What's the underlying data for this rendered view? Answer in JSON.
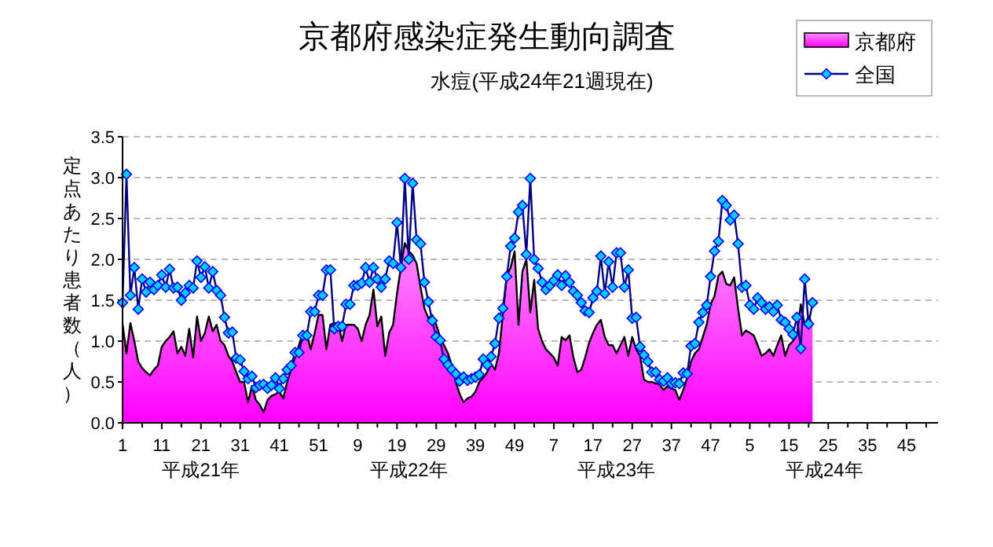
{
  "chart_data": {
    "type": "line",
    "title": "京都府感染症発生動向調査",
    "subtitle": "水痘(平成24年21週現在)",
    "ylabel": "定点あたり患者数（人）",
    "annotations": [
      "平成21年",
      "平成22年",
      "平成23年",
      "平成24年"
    ],
    "categories": [
      "1",
      null,
      null,
      null,
      null,
      null,
      null,
      null,
      null,
      null,
      "11",
      null,
      null,
      null,
      null,
      null,
      null,
      null,
      null,
      null,
      "21",
      null,
      null,
      null,
      null,
      null,
      null,
      null,
      null,
      null,
      "31",
      null,
      null,
      null,
      null,
      null,
      null,
      null,
      null,
      null,
      "41",
      null,
      null,
      null,
      null,
      null,
      null,
      null,
      null,
      null,
      "51",
      null,
      null,
      null,
      null,
      null,
      null,
      null,
      null,
      null,
      "9",
      null,
      null,
      null,
      null,
      null,
      null,
      null,
      null,
      null,
      "19",
      null,
      null,
      null,
      null,
      null,
      null,
      null,
      null,
      null,
      "29",
      null,
      null,
      null,
      null,
      null,
      null,
      null,
      null,
      null,
      "39",
      null,
      null,
      null,
      null,
      null,
      null,
      null,
      null,
      null,
      "49",
      null,
      null,
      null,
      null,
      null,
      null,
      null,
      null,
      null,
      "7",
      null,
      null,
      null,
      null,
      null,
      null,
      null,
      null,
      null,
      "17",
      null,
      null,
      null,
      null,
      null,
      null,
      null,
      null,
      null,
      "27",
      null,
      null,
      null,
      null,
      null,
      null,
      null,
      null,
      null,
      "37",
      null,
      null,
      null,
      null,
      null,
      null,
      null,
      null,
      null,
      "47",
      null,
      null,
      null,
      null,
      null,
      null,
      null,
      null,
      null,
      "5",
      null,
      null,
      null,
      null,
      null,
      null,
      null,
      null,
      null,
      "15",
      null,
      null,
      null,
      null,
      null,
      null,
      null,
      null,
      null,
      "25",
      null,
      null,
      null,
      null,
      null,
      null,
      null,
      null,
      null,
      "35",
      null,
      null,
      null,
      null,
      null,
      null,
      null,
      null,
      null,
      "45",
      null,
      null,
      null,
      null,
      null,
      null,
      null
    ],
    "series": [
      {
        "name": "京都府",
        "type": "area",
        "color": "#ff00ff",
        "values": [
          1.21,
          0.85,
          1.22,
          1.0,
          0.75,
          0.67,
          0.62,
          0.58,
          0.65,
          0.7,
          0.93,
          1.0,
          1.05,
          1.12,
          0.85,
          0.93,
          0.82,
          1.15,
          0.8,
          1.3,
          1.0,
          1.1,
          1.3,
          1.12,
          1.2,
          1.0,
          0.95,
          0.82,
          0.75,
          0.62,
          0.5,
          0.5,
          0.25,
          0.45,
          0.28,
          0.22,
          0.13,
          0.28,
          0.33,
          0.35,
          0.38,
          0.3,
          0.5,
          0.65,
          0.8,
          0.95,
          1.1,
          1.08,
          0.9,
          1.1,
          1.32,
          1.32,
          0.9,
          1.2,
          1.22,
          1.22,
          1.0,
          1.2,
          1.2,
          1.2,
          1.15,
          1.0,
          1.2,
          1.32,
          1.63,
          1.18,
          1.3,
          0.82,
          1.1,
          1.2,
          1.58,
          1.9,
          2.2,
          2.1,
          2.05,
          1.95,
          1.66,
          1.4,
          1.28,
          1.32,
          1.2,
          1.05,
          0.95,
          0.85,
          0.7,
          0.5,
          0.35,
          0.25,
          0.3,
          0.32,
          0.38,
          0.5,
          0.55,
          0.62,
          0.72,
          0.65,
          0.85,
          1.32,
          1.8,
          1.9,
          2.1,
          1.2,
          1.85,
          2.0,
          1.35,
          1.75,
          1.15,
          1.0,
          0.9,
          0.85,
          0.8,
          0.7,
          1.05,
          1.01,
          1.07,
          0.8,
          0.62,
          0.65,
          0.8,
          0.98,
          1.1,
          1.2,
          1.26,
          1.05,
          0.95,
          0.95,
          0.85,
          0.95,
          1.05,
          0.82,
          1.05,
          0.9,
          0.82,
          0.53,
          0.5,
          0.5,
          0.48,
          0.47,
          0.4,
          0.45,
          0.42,
          0.4,
          0.28,
          0.4,
          0.55,
          0.75,
          0.85,
          0.9,
          1.05,
          1.2,
          1.45,
          1.55,
          1.8,
          1.85,
          1.7,
          1.68,
          1.78,
          1.4,
          1.07,
          1.13,
          1.1,
          1.07,
          0.95,
          0.82,
          0.85,
          0.9,
          0.82,
          0.95,
          1.07,
          0.82,
          0.95,
          1.0,
          1.07,
          1.45,
          1.2,
          1.3,
          1.2,
          null,
          null,
          null,
          null,
          null,
          null,
          null,
          null,
          null,
          null,
          null,
          null,
          null,
          null,
          null,
          null,
          null,
          null,
          null,
          null,
          null,
          null,
          null,
          null,
          null,
          null,
          null,
          null,
          null,
          null,
          null
        ]
      },
      {
        "name": "全国",
        "color": "#00ccff",
        "marker": "diamond",
        "values": [
          1.47,
          3.04,
          1.56,
          1.9,
          1.39,
          1.76,
          1.6,
          1.72,
          1.63,
          1.68,
          1.81,
          1.66,
          1.88,
          1.65,
          1.66,
          1.5,
          1.59,
          1.68,
          1.65,
          1.98,
          1.78,
          1.91,
          1.65,
          1.85,
          1.62,
          1.56,
          1.29,
          1.1,
          1.11,
          0.79,
          0.77,
          0.63,
          0.54,
          0.57,
          0.43,
          0.46,
          0.47,
          0.42,
          0.46,
          0.55,
          0.42,
          0.54,
          0.65,
          0.7,
          0.86,
          0.86,
          1.07,
          1.07,
          1.36,
          1.36,
          1.56,
          1.56,
          1.87,
          1.87,
          1.15,
          1.18,
          1.18,
          1.45,
          1.45,
          1.68,
          1.68,
          1.71,
          1.9,
          1.72,
          1.9,
          1.76,
          1.66,
          1.76,
          1.98,
          1.95,
          2.45,
          1.9,
          2.99,
          2.0,
          2.93,
          2.24,
          2.19,
          1.72,
          1.48,
          1.25,
          1.05,
          1.01,
          0.78,
          0.71,
          0.65,
          0.6,
          0.51,
          0.56,
          0.52,
          0.54,
          0.56,
          0.59,
          0.78,
          0.71,
          0.81,
          0.97,
          1.28,
          1.4,
          1.79,
          2.16,
          2.26,
          2.58,
          2.66,
          2.06,
          2.99,
          2.0,
          1.89,
          1.72,
          1.63,
          1.68,
          1.74,
          1.81,
          1.68,
          1.8,
          1.72,
          1.61,
          1.56,
          1.47,
          1.37,
          1.35,
          1.53,
          1.61,
          2.04,
          1.58,
          1.97,
          1.66,
          2.08,
          2.08,
          1.66,
          1.87,
          1.28,
          1.29,
          0.93,
          0.83,
          0.75,
          0.62,
          0.62,
          0.53,
          0.51,
          0.55,
          0.48,
          0.49,
          0.48,
          0.61,
          0.6,
          0.94,
          0.97,
          1.23,
          1.35,
          1.44,
          1.79,
          2.1,
          2.22,
          2.72,
          2.66,
          2.48,
          2.54,
          2.19,
          1.66,
          1.68,
          1.44,
          1.39,
          1.53,
          1.47,
          1.39,
          1.42,
          1.36,
          1.44,
          1.26,
          1.23,
          1.15,
          1.08,
          1.29,
          0.91,
          1.76,
          1.21,
          1.47,
          null,
          null,
          null,
          null,
          null,
          null,
          null,
          null,
          null,
          null,
          null,
          null,
          null,
          null,
          null,
          null,
          null,
          null,
          null,
          null,
          null,
          null,
          null,
          null,
          null,
          null,
          null,
          null,
          null,
          null,
          null
        ]
      }
    ],
    "ylim": [
      0,
      3.5
    ],
    "yticks": [
      {
        "value": 0,
        "label": "0.0"
      },
      {
        "value": 0.5,
        "label": "0.5"
      },
      {
        "value": 1,
        "label": "1.0"
      },
      {
        "value": 1.5,
        "label": "1.5"
      },
      {
        "value": 2,
        "label": "2.0"
      },
      {
        "value": 2.5,
        "label": "2.5"
      },
      {
        "value": 3,
        "label": "3.0"
      },
      {
        "value": 3.5,
        "label": "3.5"
      }
    ],
    "grid": "y",
    "legend": "top right"
  }
}
